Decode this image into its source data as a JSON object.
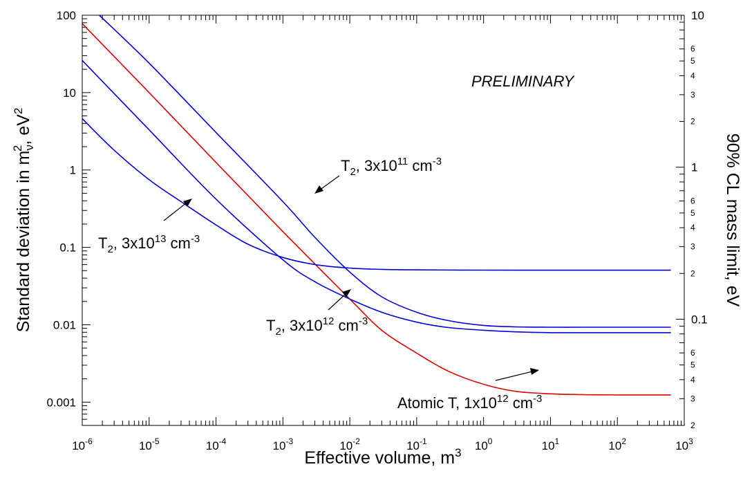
{
  "chart_data": {
    "type": "line",
    "xlabel": "Effective volume, m",
    "xlabel_sup": "3",
    "ylabel": "Standard deviation in m",
    "ylabel_sub": "ν",
    "ylabel_sup": "2",
    "ylabel_unit": ", eV",
    "ylabel_unit_sup": "2",
    "y2label": "90% CL mass limit, eV",
    "x_scale": "log",
    "y_scale": "log",
    "y2_scale": "log",
    "xlim": [
      1e-06,
      1000
    ],
    "ylim": [
      0.0005,
      100
    ],
    "y2lim": [
      0.02,
      10
    ],
    "grid": false,
    "legend": "none",
    "annotation": "PRELIMINARY",
    "x_ticks": [
      {
        "base": "10",
        "exp": "-6"
      },
      {
        "base": "10",
        "exp": "-5"
      },
      {
        "base": "10",
        "exp": "-4"
      },
      {
        "base": "10",
        "exp": "-3"
      },
      {
        "base": "10",
        "exp": "-2"
      },
      {
        "base": "10",
        "exp": "-1"
      },
      {
        "base": "10",
        "exp": "0"
      },
      {
        "base": "10",
        "exp": "1"
      },
      {
        "base": "10",
        "exp": "2"
      },
      {
        "base": "10",
        "exp": "3"
      }
    ],
    "y_ticks": [
      "100",
      "10",
      "1",
      "0.1",
      "0.01",
      "0.001"
    ],
    "y2_major_ticks": [
      "10",
      "1",
      "0.1"
    ],
    "y2_minor_labels": {
      "top": [
        "6",
        "5",
        "4",
        "3",
        "2"
      ],
      "mid": [
        "6",
        "5",
        "4",
        "3",
        "2"
      ],
      "bottom": [
        "6",
        "5",
        "4",
        "3",
        "2"
      ]
    },
    "series": [
      {
        "color": "#0000dd",
        "label": {
          "pre": "T",
          "sub": "2",
          "mid": ", 3x10",
          "sup": "11",
          "post": " cm",
          "post_sup": "-3"
        },
        "x": [
          1.8e-06,
          1e-05,
          0.0001,
          0.001,
          0.003,
          0.01,
          0.03,
          0.1,
          0.3,
          1,
          3,
          10,
          30,
          100,
          630
        ],
        "y": [
          100,
          24,
          3.05,
          0.39,
          0.135,
          0.048,
          0.023,
          0.0145,
          0.0113,
          0.0098,
          0.0094,
          0.0093,
          0.0093,
          0.0093,
          0.0093
        ]
      },
      {
        "color": "#dd0000",
        "label": {
          "pre": "Atomic T, 1x10",
          "sub": "",
          "mid": "",
          "sup": "12",
          "post": " cm",
          "post_sup": "-3"
        },
        "x": [
          1e-06,
          1e-05,
          0.0001,
          0.001,
          0.01,
          0.03,
          0.1,
          0.3,
          1,
          3,
          10,
          30,
          100,
          630
        ],
        "y": [
          78,
          10,
          1.25,
          0.16,
          0.0215,
          0.0085,
          0.0043,
          0.0025,
          0.0017,
          0.00138,
          0.00128,
          0.00125,
          0.00124,
          0.00124
        ]
      },
      {
        "color": "#0000dd",
        "label": {
          "pre": "T",
          "sub": "2",
          "mid": ", 3x10",
          "sup": "12",
          "post": " cm",
          "post_sup": "-3"
        },
        "x": [
          1e-06,
          1e-05,
          0.0001,
          0.001,
          0.003,
          0.01,
          0.03,
          0.1,
          0.3,
          1,
          3,
          10,
          30,
          100,
          630
        ],
        "y": [
          26,
          3.3,
          0.42,
          0.069,
          0.036,
          0.0215,
          0.0145,
          0.0108,
          0.0092,
          0.0085,
          0.0081,
          0.0079,
          0.0079,
          0.0079,
          0.0079
        ]
      },
      {
        "color": "#0000dd",
        "label": {
          "pre": "T",
          "sub": "2",
          "mid": ", 3x10",
          "sup": "13",
          "post": " cm",
          "post_sup": "-3"
        },
        "x": [
          1e-06,
          3e-06,
          1e-05,
          3e-05,
          0.0001,
          0.0003,
          0.001,
          0.003,
          0.01,
          0.03,
          0.1,
          1,
          10,
          100,
          630
        ],
        "y": [
          4.6,
          1.8,
          0.75,
          0.39,
          0.195,
          0.11,
          0.074,
          0.06,
          0.054,
          0.052,
          0.0512,
          0.0508,
          0.0507,
          0.0507,
          0.0507
        ]
      }
    ]
  }
}
